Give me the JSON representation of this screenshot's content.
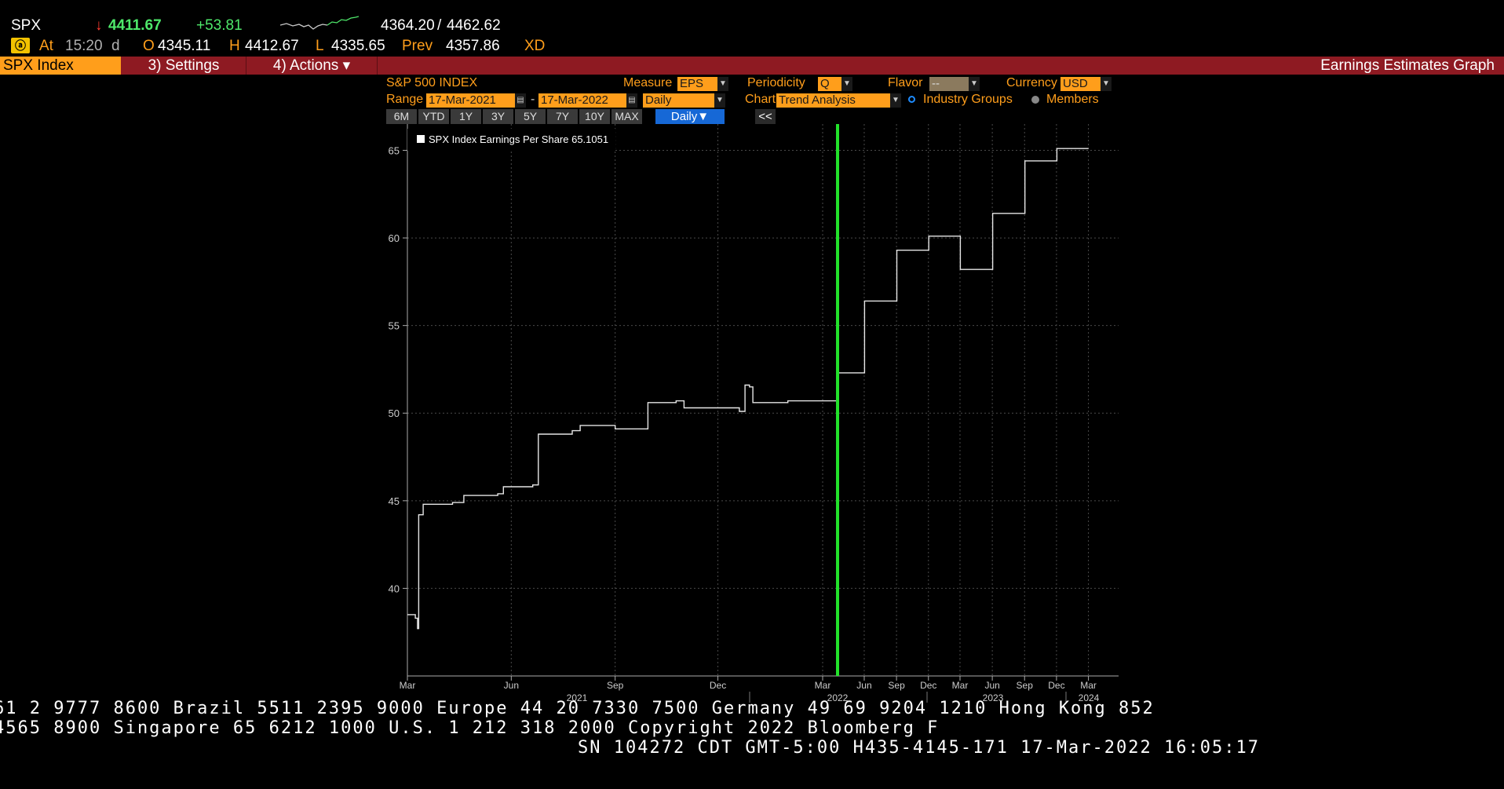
{
  "quote": {
    "ticker": "SPX",
    "arrow": "↓",
    "last": "4411.67",
    "change": "+53.81",
    "range_low": "4364.20",
    "range_sep": "/",
    "range_high": "4462.62",
    "at_label": "At",
    "time": "15:20",
    "time_flag": "d",
    "open_label": "O",
    "open": "4345.11",
    "high_label": "H",
    "high": "4412.67",
    "low_label": "L",
    "low": "4335.65",
    "prev_label": "Prev",
    "prev": "4357.86",
    "xd": "XD",
    "icon": "alert-icon"
  },
  "toolbar": {
    "security": "SPX Index",
    "settings": "3) Settings",
    "actions": "4) Actions ▾",
    "title": "Earnings Estimates Graph"
  },
  "controls": {
    "index_name": "S&P 500 INDEX",
    "measure_label": "Measure",
    "measure": "EPS",
    "periodicity_label": "Periodicity",
    "periodicity": "Q",
    "flavor_label": "Flavor",
    "flavor": "--",
    "currency_label": "Currency",
    "currency": "USD",
    "range_label": "Range",
    "start": "17-Mar-2021",
    "dash": "-",
    "end": "17-Mar-2022",
    "frequency": "Daily",
    "chart_label": "Chart",
    "chart_type": "Trend Analysis",
    "radio_industry": "Industry Groups",
    "radio_members": "Members",
    "range_buttons": [
      "6M",
      "YTD",
      "1Y",
      "3Y",
      "5Y",
      "7Y",
      "10Y",
      "MAX"
    ],
    "daily_button": "Daily▼",
    "collapse": "<<"
  },
  "chart_data": {
    "type": "line",
    "legend": "SPX Index Earnings Per Share 65.1051",
    "ylim": [
      35,
      66.5
    ],
    "yticks": [
      40,
      45,
      50,
      55,
      60,
      65
    ],
    "x_tick_labels": [
      "Mar",
      "Jun",
      "Sep",
      "Dec",
      "Mar",
      "Jun",
      "Sep",
      "Dec",
      "Mar",
      "Jun",
      "Sep",
      "Dec",
      "Mar"
    ],
    "x_year_labels": [
      "2021",
      "2022",
      "2023",
      "2024"
    ],
    "divider_date": "2022-03-17",
    "grid": true,
    "series": [
      {
        "points": [
          [
            "2021-03-01",
            38.5
          ],
          [
            "2021-03-08",
            38.3
          ],
          [
            "2021-03-10",
            37.7
          ],
          [
            "2021-03-11",
            44.2
          ],
          [
            "2021-03-15",
            44.8
          ],
          [
            "2021-04-10",
            44.9
          ],
          [
            "2021-04-20",
            45.3
          ],
          [
            "2021-05-20",
            45.4
          ],
          [
            "2021-05-25",
            45.8
          ],
          [
            "2021-06-20",
            45.9
          ],
          [
            "2021-06-25",
            48.8
          ],
          [
            "2021-07-25",
            49.0
          ],
          [
            "2021-08-01",
            49.3
          ],
          [
            "2021-09-01",
            49.1
          ],
          [
            "2021-09-25",
            49.1
          ],
          [
            "2021-09-30",
            50.6
          ],
          [
            "2021-10-25",
            50.7
          ],
          [
            "2021-11-01",
            50.3
          ],
          [
            "2021-12-01",
            50.3
          ],
          [
            "2021-12-20",
            50.1
          ],
          [
            "2021-12-25",
            51.6
          ],
          [
            "2021-12-29",
            51.5
          ],
          [
            "2022-01-01",
            50.6
          ],
          [
            "2022-02-01",
            50.7
          ],
          [
            "2022-03-17",
            50.6
          ]
        ]
      },
      {
        "points": [
          [
            "2022-03-17",
            52.3
          ],
          [
            "2022-06-01",
            52.3
          ],
          [
            "2022-06-02",
            56.4
          ],
          [
            "2022-09-01",
            56.4
          ],
          [
            "2022-09-02",
            59.3
          ],
          [
            "2022-12-01",
            59.3
          ],
          [
            "2022-12-02",
            60.1
          ],
          [
            "2023-03-01",
            60.1
          ],
          [
            "2023-03-02",
            58.2
          ],
          [
            "2023-06-01",
            58.2
          ],
          [
            "2023-06-02",
            61.4
          ],
          [
            "2023-09-01",
            61.4
          ],
          [
            "2023-09-02",
            64.4
          ],
          [
            "2023-12-01",
            64.4
          ],
          [
            "2023-12-02",
            65.1
          ],
          [
            "2024-03-01",
            65.1
          ]
        ]
      }
    ]
  },
  "footer": {
    "line1": "61 2 9777 8600 Brazil 5511 2395 9000 Europe 44 20 7330 7500 Germany 49 69 9204 1210 Hong Kong 852",
    "line2": "4565 8900      Singapore 65 6212 1000      U.S. 1 212 318 2000       Copyright 2022 Bloomberg F",
    "line3": "SN 104272 CDT  GMT-5:00 H435-4145-171 17-Mar-2022 16:05:17"
  }
}
